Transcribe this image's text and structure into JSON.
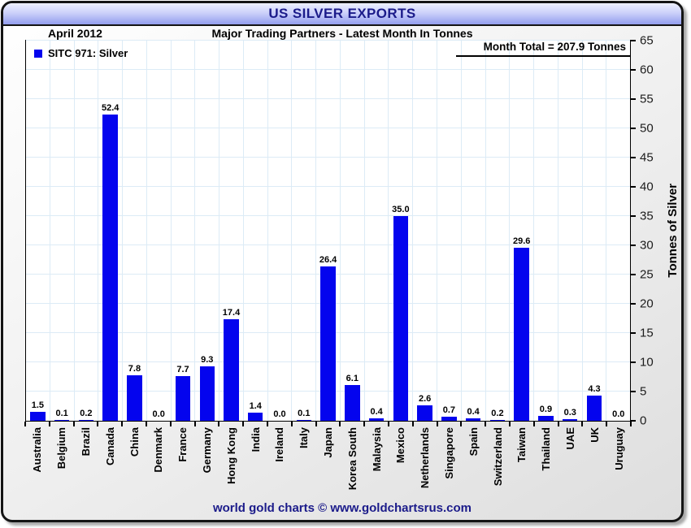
{
  "header": {
    "title": "US SILVER EXPORTS",
    "date": "April 2012",
    "subtitle": "Major Trading Partners - Latest Month In Tonnes"
  },
  "legend": {
    "label": "SITC 971: Silver",
    "swatch_color": "#0404ee"
  },
  "annotations": {
    "month_total": "Month Total = 207.9 Tonnes"
  },
  "footer": {
    "text": "world gold charts © www.goldchartsrus.com"
  },
  "colors": {
    "bar": "#0404ee",
    "gridline": "#dcebf6",
    "title_text": "#1b1b8a",
    "titlebar_gradient_top": "#eef0fe",
    "titlebar_gradient_bottom": "#939eee"
  },
  "chart_data": {
    "type": "bar",
    "title": "US SILVER EXPORTS",
    "subtitle": "Major Trading Partners - Latest Month In Tonnes",
    "period": "April 2012",
    "series_name": "SITC 971: Silver",
    "categories": [
      "Australia",
      "Belgium",
      "Brazil",
      "Canada",
      "China",
      "Denmark",
      "France",
      "Germany",
      "Hong Kong",
      "India",
      "Ireland",
      "Italy",
      "Japan",
      "Korea South",
      "Malaysia",
      "Mexico",
      "Netherlands",
      "Singapore",
      "Spain",
      "Switzerland",
      "Taiwan",
      "Thailand",
      "UAE",
      "UK",
      "Uruguay"
    ],
    "values": [
      1.5,
      0.1,
      0.2,
      52.4,
      7.8,
      0.0,
      7.7,
      9.3,
      17.4,
      1.4,
      0.0,
      0.1,
      26.4,
      6.1,
      0.4,
      35.0,
      2.6,
      0.7,
      0.4,
      0.2,
      29.6,
      0.9,
      0.3,
      4.3,
      0.0
    ],
    "month_total": 207.9,
    "xlabel": "",
    "ylabel": "Tonnes of Silver",
    "ylim": [
      0,
      65
    ],
    "ytick_step": 5,
    "grid": true,
    "legend_position": "top-left",
    "yaxis_side": "right",
    "bar_color": "#0404ee"
  }
}
